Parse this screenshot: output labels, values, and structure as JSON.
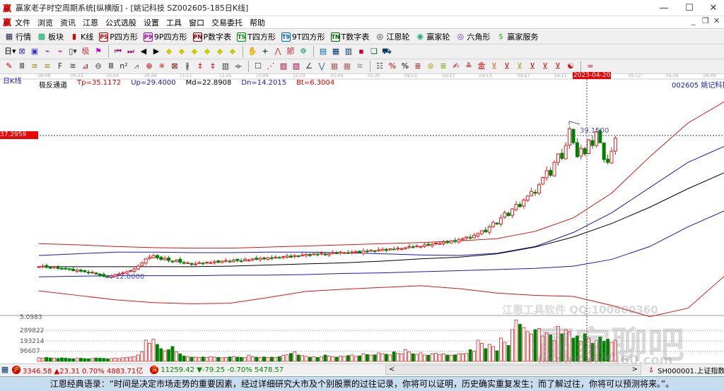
{
  "window": {
    "logo": "赢",
    "title": "赢家老子时空周期系统[纵横版] - [姚记科技  SZ002605-185日K线]",
    "min": "—",
    "max": "☐",
    "close": "✕",
    "mdi_min": "_",
    "mdi_restore": "❐",
    "mdi_close": "✕"
  },
  "menu": [
    "文件",
    "浏览",
    "资讯",
    "江恩",
    "公式选股",
    "设置",
    "工具",
    "窗口",
    "交易委托",
    "帮助"
  ],
  "toolbar1": [
    {
      "icon": "grid-icon",
      "glyph": "▦",
      "color": "#224",
      "label": "行情"
    },
    {
      "icon": "blocks-icon",
      "glyph": "▩",
      "color": "#0a6",
      "label": "板块"
    },
    {
      "icon": "kline-icon",
      "glyph": "▮",
      "color": "#d00",
      "label": "K线"
    },
    {
      "icon": "ps-icon",
      "glyph": "PS",
      "color": "#c00",
      "label": "P四方形"
    },
    {
      "icon": "p9-icon",
      "glyph": "P9",
      "color": "#a0a",
      "label": "9P四方形"
    },
    {
      "icon": "pn-icon",
      "glyph": "PN",
      "color": "#800",
      "label": "P数字表"
    },
    {
      "icon": "ts-icon",
      "glyph": "TS",
      "color": "#080",
      "label": "T四方形"
    },
    {
      "icon": "t9-icon",
      "glyph": "T9",
      "color": "#06a",
      "label": "9T四方形"
    },
    {
      "icon": "tn-icon",
      "glyph": "TN",
      "color": "#060",
      "label": "T数字表"
    },
    {
      "icon": "target-icon",
      "glyph": "◎",
      "color": "#333",
      "label": "江恩轮"
    },
    {
      "icon": "wheel-icon",
      "glyph": "◉",
      "color": "#2a6",
      "label": "赢家轮"
    },
    {
      "icon": "hexagon-icon",
      "glyph": "◎",
      "color": "#63c",
      "label": "六角形"
    },
    {
      "icon": "dollar-icon",
      "glyph": "$",
      "color": "#3b3",
      "label": "赢家服务"
    }
  ],
  "toolbar2": [
    {
      "icon": "day-period-icon",
      "glyph": "日▾",
      "color": "#000"
    },
    {
      "icon": "pattern-icon",
      "glyph": "⊠",
      "color": "#33c"
    },
    {
      "icon": "page-icon",
      "glyph": "▣",
      "color": "#33c"
    },
    {
      "icon": "wave-icon",
      "glyph": "⌁",
      "color": "#a0a"
    },
    {
      "icon": "wave2-icon",
      "glyph": "⌁",
      "color": "#a0a"
    },
    {
      "icon": "candle-type-icon",
      "glyph": "▯▾",
      "color": "#333"
    },
    {
      "icon": "extreme-icon",
      "glyph": "极",
      "color": "#c33"
    },
    {
      "icon": "flag-icon",
      "glyph": "⚑",
      "color": "#c0c"
    },
    {
      "icon": "first-icon",
      "glyph": "⏮",
      "color": "#a06"
    },
    {
      "icon": "last-icon",
      "glyph": "⏭",
      "color": "#a06"
    },
    {
      "icon": "prev-icon",
      "glyph": "◀",
      "color": "#000"
    },
    {
      "icon": "next-icon",
      "glyph": "▶",
      "color": "#000"
    },
    {
      "icon": "diamond1-icon",
      "glyph": "◆",
      "color": "#cc0"
    },
    {
      "icon": "diamond2-icon",
      "glyph": "◆",
      "color": "#cc0"
    },
    {
      "icon": "diamond3-icon",
      "glyph": "◆",
      "color": "#cc0"
    },
    {
      "icon": "diamond4-icon",
      "glyph": "◆",
      "color": "#cc0"
    },
    {
      "icon": "diamond5-icon",
      "glyph": "◆",
      "color": "#cc0"
    },
    {
      "icon": "diamond6-icon",
      "glyph": "◆",
      "color": "#cc0"
    },
    {
      "icon": "hand-icon",
      "glyph": "✋",
      "color": "#333"
    },
    {
      "icon": "crosshair-icon",
      "glyph": "+",
      "color": "#000"
    },
    {
      "icon": "line-tool-icon",
      "glyph": "⋀",
      "color": "#c33"
    },
    {
      "icon": "section-icon",
      "glyph": "節",
      "color": "#c33"
    },
    {
      "icon": "ring-icon",
      "glyph": "❁",
      "color": "#3a6"
    },
    {
      "icon": "calendar-icon",
      "glyph": "▤",
      "color": "#06a"
    },
    {
      "icon": "calculator-icon",
      "glyph": "▦",
      "color": "#036"
    },
    {
      "icon": "notebook-icon",
      "glyph": "▥",
      "color": "#036"
    },
    {
      "icon": "save-icon",
      "glyph": "▪",
      "color": "#c03"
    },
    {
      "icon": "windows-icon",
      "glyph": "❏",
      "color": "#063"
    },
    {
      "icon": "truck-icon",
      "glyph": "⛟",
      "color": "#036"
    }
  ],
  "toolbar3": [
    {
      "icon": "pen-icon",
      "glyph": "✎",
      "color": "#c00"
    },
    {
      "icon": "lines-icon",
      "glyph": "Ⅲ",
      "color": "#333"
    },
    {
      "icon": "fib-icon",
      "glyph": "≡",
      "color": "#a80"
    },
    {
      "icon": "fib2-icon",
      "glyph": "≡",
      "color": "#a80"
    },
    {
      "icon": "fan-icon",
      "glyph": "F",
      "color": "#333"
    },
    {
      "icon": "arc-icon",
      "glyph": "≋",
      "color": "#333"
    },
    {
      "icon": "triangle-icon",
      "glyph": "⊿",
      "color": "#c00"
    },
    {
      "icon": "circle-icon",
      "glyph": "⊖",
      "color": "#333"
    },
    {
      "icon": "ruler-icon",
      "glyph": "Ⅲ",
      "color": "#333"
    },
    {
      "icon": "n2-icon",
      "glyph": "n²",
      "color": "#333"
    },
    {
      "icon": "pitchfork-icon",
      "glyph": "⩘",
      "color": "#555"
    },
    {
      "icon": "spiral-icon",
      "glyph": "⊕",
      "color": "#c00"
    },
    {
      "icon": "star-icon",
      "glyph": "✳",
      "color": "#c00"
    },
    {
      "icon": "box-icon",
      "glyph": "⊠",
      "color": "#800"
    },
    {
      "icon": "angle-icon",
      "glyph": "∦",
      "color": "#333"
    },
    {
      "icon": "gann-icon",
      "glyph": "‡",
      "color": "#c00"
    },
    {
      "icon": "gann2-icon",
      "glyph": "‡",
      "color": "#c00"
    },
    {
      "icon": "grid2-icon",
      "glyph": "▥",
      "color": "#333"
    },
    {
      "icon": "cycle-icon",
      "glyph": "⟛",
      "color": "#333"
    },
    {
      "icon": "frame-icon",
      "glyph": "☐",
      "color": "#333"
    },
    {
      "icon": "fan2-icon",
      "glyph": "⋰",
      "color": "#c00"
    },
    {
      "icon": "square-icon",
      "glyph": "▨",
      "color": "#a04"
    },
    {
      "icon": "square2-icon",
      "glyph": "▨",
      "color": "#a04"
    },
    {
      "icon": "angle2-icon",
      "glyph": "∠",
      "color": "#333"
    },
    {
      "icon": "zigzag-icon",
      "glyph": "⋁",
      "color": "#36a"
    },
    {
      "icon": "grid3-icon",
      "glyph": "▦",
      "color": "#a66"
    },
    {
      "icon": "grid4-icon",
      "glyph": "▦",
      "color": "#a66"
    },
    {
      "icon": "hatch-icon",
      "glyph": "≋",
      "color": "#888"
    },
    {
      "icon": "list-icon",
      "glyph": "☷",
      "color": "#333"
    },
    {
      "icon": "percent-slash-icon",
      "glyph": "%",
      "color": "#c00"
    },
    {
      "icon": "percent-icon",
      "glyph": "%",
      "color": "#000"
    },
    {
      "icon": "levels-icon",
      "glyph": "≣",
      "color": "#c00"
    },
    {
      "icon": "coin-icon",
      "glyph": "⊛",
      "color": "#aa0"
    },
    {
      "icon": "levels2-icon",
      "glyph": "≣",
      "color": "#6a0"
    },
    {
      "icon": "brush-icon",
      "glyph": "✍",
      "color": "#c00"
    },
    {
      "icon": "level3-icon",
      "glyph": "≚",
      "color": "#c00"
    },
    {
      "icon": "gold-icon",
      "glyph": "金",
      "color": "#c00"
    },
    {
      "icon": "angle3-icon",
      "glyph": "⊻",
      "color": "#c60"
    },
    {
      "icon": "angle4-icon",
      "glyph": "⊻",
      "color": "#c00"
    },
    {
      "icon": "angle5-icon",
      "glyph": "⊻",
      "color": "#990"
    },
    {
      "icon": "angle6-icon",
      "glyph": "⊻",
      "color": "#c00"
    },
    {
      "icon": "angle7-icon",
      "glyph": "⊻",
      "color": "#c00"
    },
    {
      "icon": "angle8-icon",
      "glyph": "⊻",
      "color": "#c00"
    },
    {
      "icon": "yinyang-icon",
      "glyph": "☯",
      "color": "#c00"
    },
    {
      "icon": "infinity-icon",
      "glyph": "∞",
      "color": "#c00"
    }
  ],
  "chart": {
    "period": "日K线",
    "indicator": {
      "name": "极反通道",
      "tp": "Tp=35.1172",
      "up": "Up=29.4000",
      "md": "Md=22.8908",
      "dn": "Dn=14.2015",
      "bt": "Bt=6.3004"
    },
    "stock": "002605  姚记科技",
    "dates": [
      "09-08",
      "09-23",
      "10-14",
      "10-28",
      "11-11",
      "11-25",
      "12-09",
      "12-23",
      "01-09",
      "01-30",
      "02-13",
      "02-27",
      "03-13",
      "03-27",
      "04-11",
      "05-12",
      "05-26",
      "06-09"
    ],
    "cursor_date": "2023-04-20",
    "cursor_price": "37.2959",
    "high_label": "39.1500",
    "low_label": "12.0000",
    "colors": {
      "up": "#e02020",
      "down": "#008000",
      "band_outer": "#d01818",
      "band_inner": "#1a1ab0",
      "mid": "#000000"
    },
    "volume_labels": [
      "5.0983",
      "289822",
      "193214",
      "96607"
    ],
    "volume_ticks": [
      289822,
      193214,
      96607
    ],
    "watermark": {
      "line1": "江恩工具软件  QQ:100800360",
      "line2": "赢家聊吧",
      "line3": "liaoba.yjcf360.com"
    }
  },
  "chart_data": {
    "type": "candlestick",
    "price_range": [
      2,
      50
    ],
    "closes": [
      13.9,
      14.0,
      13.8,
      13.7,
      13.9,
      13.6,
      13.5,
      13.6,
      13.4,
      13.2,
      13.3,
      13.1,
      13.0,
      12.8,
      12.9,
      12.6,
      12.4,
      12.2,
      12.0,
      12.3,
      12.5,
      12.6,
      12.8,
      13.0,
      13.2,
      13.5,
      14.0,
      14.6,
      15.3,
      15.6,
      15.9,
      15.5,
      15.2,
      15.4,
      15.0,
      14.8,
      15.1,
      14.7,
      14.5,
      14.6,
      14.3,
      14.4,
      14.6,
      14.5,
      14.7,
      14.6,
      14.8,
      14.7,
      14.9,
      15.0,
      14.8,
      15.1,
      15.0,
      14.9,
      15.2,
      15.1,
      15.3,
      15.2,
      15.4,
      15.3,
      15.5,
      15.4,
      15.6,
      15.5,
      15.7,
      15.8,
      15.6,
      15.9,
      15.8,
      16.0,
      16.1,
      15.9,
      16.2,
      16.1,
      16.3,
      16.0,
      16.2,
      16.4,
      16.3,
      16.5,
      16.4,
      16.3,
      16.5,
      16.6,
      16.4,
      16.7,
      16.6,
      16.8,
      16.7,
      16.9,
      17.0,
      16.8,
      17.1,
      17.0,
      17.2,
      17.1,
      17.3,
      17.5,
      17.4,
      17.6,
      17.5,
      17.8,
      17.7,
      17.9,
      18.1,
      18.0,
      18.3,
      18.2,
      18.5,
      18.4,
      18.7,
      18.9,
      19.2,
      19.0,
      19.5,
      19.8,
      20.3,
      20.1,
      21.0,
      21.8,
      21.5,
      22.6,
      23.5,
      23.0,
      24.2,
      25.0,
      24.6,
      25.8,
      26.5,
      27.3,
      27.0,
      28.5,
      29.8,
      31.0,
      30.2,
      32.5,
      34.0,
      33.2,
      35.5,
      38.5,
      36.0,
      33.5,
      35.0,
      34.0,
      36.5,
      35.5,
      38.0,
      36.0,
      33.0,
      32.5,
      34.5,
      36.8
    ],
    "volumes": [
      35000,
      30000,
      38000,
      32000,
      30000,
      28000,
      33000,
      30000,
      27000,
      25000,
      28000,
      30000,
      26000,
      25000,
      28000,
      32000,
      30000,
      28000,
      25000,
      27000,
      30000,
      26000,
      34000,
      36000,
      40000,
      45000,
      60000,
      90000,
      200000,
      170000,
      210000,
      160000,
      120000,
      100000,
      110000,
      140000,
      90000,
      70000,
      50000,
      45000,
      40000,
      40000,
      38000,
      42000,
      36000,
      44000,
      40000,
      38000,
      35000,
      37000,
      42000,
      46000,
      40000,
      38000,
      36000,
      60000,
      44000,
      40000,
      38000,
      42000,
      36000,
      40000,
      38000,
      44000,
      56000,
      62000,
      75000,
      90000,
      60000,
      55000,
      48000,
      40000,
      44000,
      38000,
      42000,
      60000,
      50000,
      45000,
      40000,
      50000,
      46000,
      55000,
      60000,
      48000,
      52000,
      70000,
      65000,
      58000,
      62000,
      80000,
      72000,
      68000,
      60000,
      90000,
      75000,
      70000,
      110000,
      88000,
      72000,
      66000,
      80000,
      60000,
      58000,
      70000,
      76000,
      64000,
      70000,
      60000,
      58000,
      62000,
      72000,
      70000,
      75000,
      110000,
      95000,
      200000,
      170000,
      120000,
      160000,
      140000,
      100000,
      220000,
      180000,
      150000,
      300000,
      390000,
      350000,
      320000,
      280000,
      260000,
      300000,
      310000,
      240000,
      270000,
      250000,
      200000,
      330000,
      260000,
      300000,
      280000,
      220000,
      240000,
      190000,
      260000,
      220000,
      170000,
      200000,
      230000,
      190000,
      210000,
      180000,
      200000
    ],
    "bands_every_10_bars": {
      "upper_outer": [
        18.0,
        17.8,
        17.5,
        17.3,
        17.2,
        17.2,
        17.4,
        17.6,
        17.8,
        18.0,
        18.2,
        18.5,
        18.9,
        20.2,
        22.6,
        27.0,
        33.5,
        39.5,
        43.5,
        45.5,
        46.8,
        46.0
      ],
      "upper_inner": [
        15.9,
        16.2,
        16.5,
        16.5,
        16.4,
        16.4,
        16.5,
        16.5,
        16.4,
        16.2,
        16.0,
        15.9,
        16.3,
        17.5,
        20.0,
        23.5,
        28.0,
        32.5,
        35.5,
        38.0,
        39.6,
        40.3
      ],
      "middle": [
        13.9,
        13.9,
        13.9,
        13.9,
        13.9,
        14.0,
        14.2,
        14.4,
        14.6,
        14.9,
        15.3,
        15.6,
        16.2,
        17.4,
        19.2,
        21.6,
        24.5,
        27.8,
        30.8,
        33.0,
        34.5,
        35.0
      ],
      "lower_inner": [
        12.1,
        12.2,
        12.3,
        12.3,
        12.3,
        12.4,
        12.4,
        12.5,
        12.7,
        12.8,
        13.0,
        13.2,
        13.4,
        13.6,
        14.0,
        15.2,
        17.5,
        21.0,
        24.0,
        26.0,
        27.5,
        28.0
      ],
      "lower_outer": [
        9.6,
        8.8,
        8.0,
        7.5,
        7.3,
        7.4,
        8.4,
        9.5,
        9.9,
        10.2,
        10.5,
        10.0,
        9.2,
        8.8,
        8.6,
        7.0,
        5.0,
        6.5,
        12.5,
        17.5,
        21.5,
        23.5
      ]
    }
  },
  "status": {
    "sh_badge": "沪",
    "sh": "3346.58 ▲23.31 0.70% 4883.71亿",
    "sz_badge": "深",
    "sz": "11259.42 ▼-79.25 -0.70% 5478.57",
    "scroll_left": "<",
    "scroll_right": ">",
    "index": "SH000001.上证指数"
  },
  "quote": "江恩经典语录：“时间是决定市场走势的重要因素，经过详细研究大市及个别股票的过往记录，你将可以证明，历史确实重复发生；而了解过往，你将可以预测将来。”。"
}
